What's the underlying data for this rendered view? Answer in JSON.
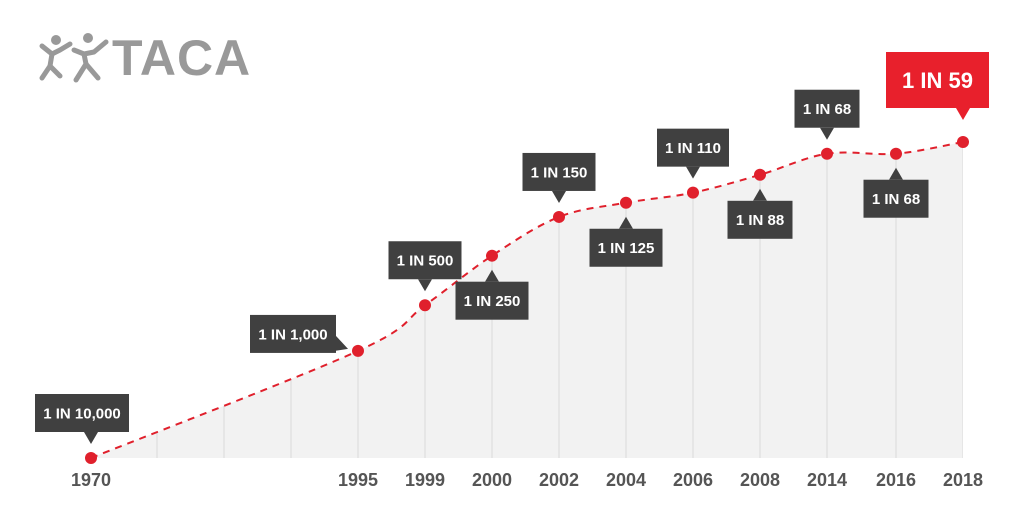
{
  "brand": {
    "name": "TACA",
    "icon": "people-figures-icon",
    "color": "#999999"
  },
  "colors": {
    "line": "#e0202c",
    "point": "#e0202c",
    "callout": "#404040",
    "callout_highlight": "#e8202c",
    "fill": "#f2f2f2",
    "grid": "#d9d9d9",
    "year_label": "#555555"
  },
  "chart_data": {
    "type": "area",
    "title": "",
    "xlabel": "",
    "ylabel": "",
    "grid": true,
    "categories": [
      "1970",
      "",
      "",
      "",
      "1995",
      "1999",
      "2000",
      "2002",
      "2004",
      "2006",
      "2008",
      "2014",
      "2016",
      "2018"
    ],
    "points": [
      {
        "year": "1970",
        "label": "1 IN 10,000",
        "rate": 0.0001,
        "callout": "above"
      },
      {
        "year": "1995",
        "label": "1 IN 1,000",
        "rate": 0.001,
        "callout": "left"
      },
      {
        "year": "1999",
        "label": "1 IN 500",
        "rate": 0.002,
        "callout": "above"
      },
      {
        "year": "2000",
        "label": "1 IN 250",
        "rate": 0.004,
        "callout": "below"
      },
      {
        "year": "2002",
        "label": "1 IN 150",
        "rate": 0.00667,
        "callout": "above"
      },
      {
        "year": "2004",
        "label": "1 IN 125",
        "rate": 0.008,
        "callout": "below"
      },
      {
        "year": "2006",
        "label": "1 IN 110",
        "rate": 0.00909,
        "callout": "above"
      },
      {
        "year": "2008",
        "label": "1 IN 88",
        "rate": 0.01136,
        "callout": "below"
      },
      {
        "year": "2014",
        "label": "1 IN 68",
        "rate": 0.01471,
        "callout": "above"
      },
      {
        "year": "2016",
        "label": "1 IN 68",
        "rate": 0.01471,
        "callout": "below"
      },
      {
        "year": "2018",
        "label": "1 IN 59",
        "rate": 0.01695,
        "callout": "above",
        "highlight": true
      }
    ]
  }
}
